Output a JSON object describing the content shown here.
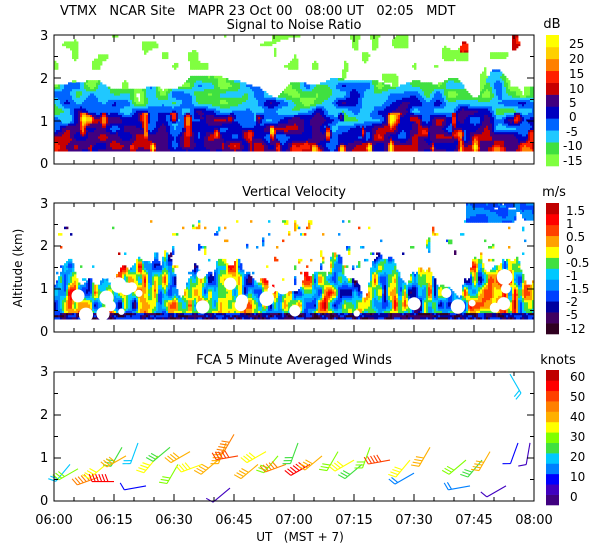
{
  "header": {
    "line1": "VTMX   NCAR Site   MAPR 23 Oct 00   08:00 UT   02:05   MDT"
  },
  "colors": {
    "snr": [
      "#80ff40",
      "#40e040",
      "#20c8ff",
      "#0064ff",
      "#0000c0",
      "#400080",
      "#c80000",
      "#ff2000",
      "#ff8000",
      "#ffd000",
      "#ffff00"
    ],
    "velocity": [
      "#300020",
      "#400060",
      "#0000a0",
      "#0040ff",
      "#0090ff",
      "#00c8ff",
      "#40e040",
      "#ffff00",
      "#ffa000",
      "#ff4000",
      "#ff0000",
      "#c00000"
    ],
    "wind": [
      "#400080",
      "#4000c0",
      "#0000ff",
      "#0080ff",
      "#00c8ff",
      "#40e040",
      "#80ff00",
      "#ffff00",
      "#ffb000",
      "#ff8000",
      "#ff4000",
      "#ff0000",
      "#c00000"
    ]
  },
  "shared_axes": {
    "y_ticks": [
      "0",
      "1",
      "2",
      "3"
    ],
    "ylabel": "Altitude (km)",
    "x_ticks": [
      "06:00",
      "06:15",
      "06:30",
      "06:45",
      "07:00",
      "07:15",
      "07:30",
      "07:45",
      "08:00"
    ],
    "xlabel": "UT   (MST + 7)"
  },
  "chart_data": [
    {
      "type": "heatmap",
      "title": "Signal to Noise Ratio",
      "units": "dB",
      "xlim": [
        0,
        120
      ],
      "ylim": [
        0,
        3
      ],
      "colorbar_labels": [
        "25",
        "20",
        "15",
        "10",
        "5",
        "0",
        "-5",
        "-10",
        "-15"
      ],
      "colorbar_range": [
        -17,
        28
      ]
    },
    {
      "type": "heatmap",
      "title": "Vertical Velocity",
      "units": "m/s",
      "xlim": [
        0,
        120
      ],
      "ylim": [
        0,
        3
      ],
      "colorbar_labels": [
        "1.5",
        "1",
        "0.5",
        "0",
        "-0.5",
        "-1",
        "-1.5",
        "-2",
        "-5",
        "-12"
      ]
    },
    {
      "type": "scatter",
      "title": "FCA 5 Minute Averaged Winds",
      "units": "knots",
      "xlim": [
        0,
        120
      ],
      "ylim": [
        0,
        3
      ],
      "colorbar_labels": [
        "60",
        "50",
        "40",
        "30",
        "20",
        "10",
        "0"
      ],
      "colorbar_range": [
        0,
        65
      ],
      "barbs": [
        {
          "t": 4,
          "h": 0.85,
          "dir": 220,
          "spd": 20
        },
        {
          "t": 6,
          "h": 0.75,
          "dir": 240,
          "spd": 30
        },
        {
          "t": 11,
          "h": 0.55,
          "dir": 250,
          "spd": 45
        },
        {
          "t": 13,
          "h": 0.85,
          "dir": 230,
          "spd": 35
        },
        {
          "t": 15,
          "h": 0.45,
          "dir": 270,
          "spd": 55
        },
        {
          "t": 17,
          "h": 1.25,
          "dir": 210,
          "spd": 25
        },
        {
          "t": 18,
          "h": 1.05,
          "dir": 240,
          "spd": 40
        },
        {
          "t": 21,
          "h": 1.35,
          "dir": 200,
          "spd": 20
        },
        {
          "t": 23,
          "h": 0.35,
          "dir": 260,
          "spd": 10
        },
        {
          "t": 26,
          "h": 1.05,
          "dir": 220,
          "spd": 35
        },
        {
          "t": 29,
          "h": 1.25,
          "dir": 230,
          "spd": 25
        },
        {
          "t": 31,
          "h": 0.85,
          "dir": 210,
          "spd": 30
        },
        {
          "t": 34,
          "h": 1.15,
          "dir": 240,
          "spd": 40
        },
        {
          "t": 37,
          "h": 0.85,
          "dir": 250,
          "spd": 35
        },
        {
          "t": 41,
          "h": 0.95,
          "dir": 230,
          "spd": 40
        },
        {
          "t": 43,
          "h": 1.35,
          "dir": 200,
          "spd": 40
        },
        {
          "t": 45,
          "h": 1.55,
          "dir": 210,
          "spd": 45
        },
        {
          "t": 44,
          "h": 0.3,
          "dir": 230,
          "spd": 5
        },
        {
          "t": 46,
          "h": 1.05,
          "dir": 260,
          "spd": 50
        },
        {
          "t": 51,
          "h": 0.85,
          "dir": 230,
          "spd": 40
        },
        {
          "t": 53,
          "h": 1.15,
          "dir": 240,
          "spd": 35
        },
        {
          "t": 56,
          "h": 1.05,
          "dir": 220,
          "spd": 30
        },
        {
          "t": 58,
          "h": 0.85,
          "dir": 250,
          "spd": 45
        },
        {
          "t": 61,
          "h": 1.35,
          "dir": 200,
          "spd": 25
        },
        {
          "t": 64,
          "h": 0.85,
          "dir": 240,
          "spd": 55
        },
        {
          "t": 67,
          "h": 1.05,
          "dir": 230,
          "spd": 40
        },
        {
          "t": 71,
          "h": 1.15,
          "dir": 210,
          "spd": 30
        },
        {
          "t": 75,
          "h": 0.95,
          "dir": 240,
          "spd": 35
        },
        {
          "t": 77,
          "h": 0.85,
          "dir": 230,
          "spd": 25
        },
        {
          "t": 79,
          "h": 1.25,
          "dir": 200,
          "spd": 30
        },
        {
          "t": 84,
          "h": 0.95,
          "dir": 260,
          "spd": 50
        },
        {
          "t": 89,
          "h": 0.95,
          "dir": 220,
          "spd": 35
        },
        {
          "t": 90,
          "h": 0.65,
          "dir": 240,
          "spd": 15
        },
        {
          "t": 94,
          "h": 1.25,
          "dir": 210,
          "spd": 40
        },
        {
          "t": 103,
          "h": 0.95,
          "dir": 230,
          "spd": 30
        },
        {
          "t": 104,
          "h": 0.35,
          "dir": 260,
          "spd": 15
        },
        {
          "t": 107,
          "h": 0.95,
          "dir": 220,
          "spd": 25
        },
        {
          "t": 109,
          "h": 1.15,
          "dir": 210,
          "spd": 40
        },
        {
          "t": 113,
          "h": 0.35,
          "dir": 240,
          "spd": 5
        },
        {
          "t": 114,
          "h": 2.95,
          "dir": 150,
          "spd": 20
        },
        {
          "t": 116,
          "h": 1.35,
          "dir": 200,
          "spd": 10
        },
        {
          "t": 119,
          "h": 1.35,
          "dir": 190,
          "spd": 5
        }
      ]
    }
  ]
}
